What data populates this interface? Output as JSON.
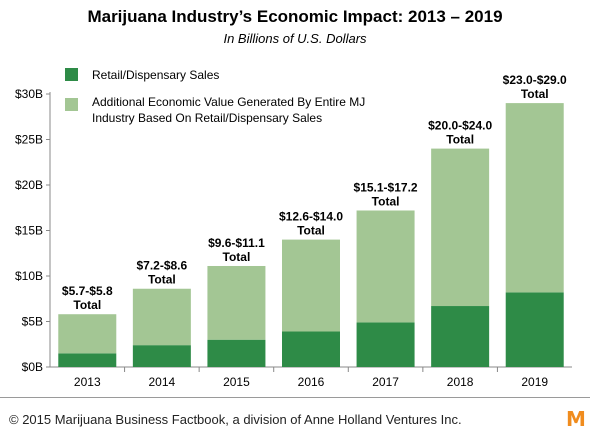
{
  "title": "Marijuana Industry’s Economic Impact: 2013 – 2019",
  "subtitle": "In Billions of U.S. Dollars",
  "footer": {
    "text": "© 2015 Marijuana Business Factbook, a division of Anne Holland Ventures Inc.",
    "logo": "M"
  },
  "colors": {
    "retail": "#2e8b47",
    "additional": "#a3c694",
    "logo": "#f08c1e"
  },
  "chart_data": {
    "type": "bar",
    "stacked": true,
    "categories": [
      "2013",
      "2014",
      "2015",
      "2016",
      "2017",
      "2018",
      "2019"
    ],
    "series": [
      {
        "name": "Retail/Dispensary Sales",
        "values": [
          1.5,
          2.4,
          3.0,
          3.9,
          4.9,
          6.7,
          8.2
        ]
      },
      {
        "name": "Additional Economic Value Generated By Entire MJ Industry Based On Retail/Dispensary Sales",
        "values": [
          4.3,
          6.2,
          8.1,
          10.1,
          12.3,
          17.3,
          20.8
        ]
      }
    ],
    "total_labels": [
      "$5.7-$5.8",
      "$7.2-$8.6",
      "$9.6-$11.1",
      "$12.6-$14.0",
      "$15.1-$17.2",
      "$20.0-$24.0",
      "$23.0-$29.0"
    ],
    "total_word": "Total",
    "y_ticks": [
      0,
      5,
      10,
      15,
      20,
      25,
      30
    ],
    "y_tick_labels": [
      "$0B",
      "$5B",
      "$10B",
      "$15B",
      "$20B",
      "$25B",
      "$30B"
    ],
    "ylim": [
      0,
      30
    ],
    "grid": false,
    "legend_placement": "top-left"
  }
}
